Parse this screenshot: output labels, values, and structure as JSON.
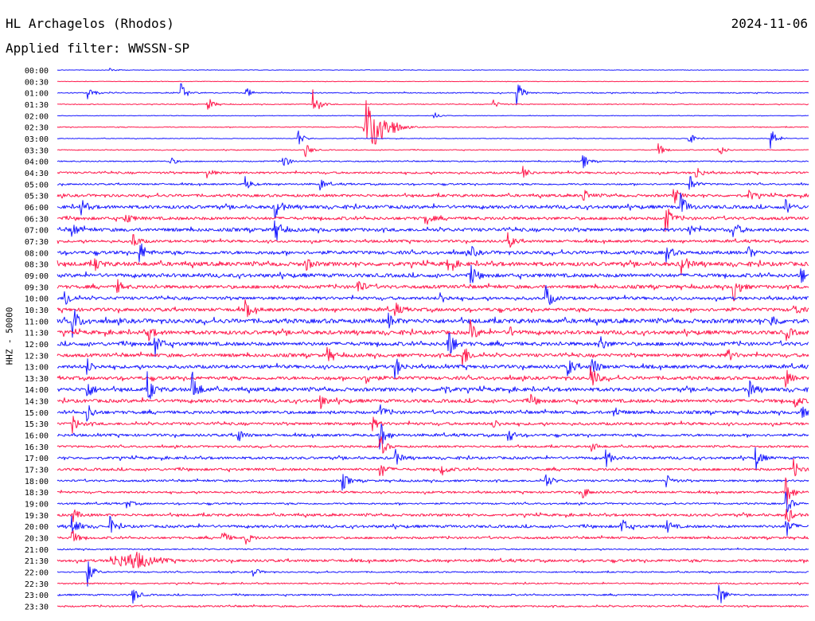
{
  "header": {
    "station": "HL Archagelos (Rhodos)",
    "date": "2024-11-06",
    "filter": "Applied filter: WWSSN-SP"
  },
  "side_label": "HHZ - 50000",
  "colors": {
    "trace_a": "#1a1aff",
    "trace_b": "#ff1a4d",
    "text": "#000000"
  },
  "chart_data": {
    "type": "line",
    "title": "HL Archagelos (Rhodos)",
    "subtitle": "Applied filter: WWSSN-SP",
    "ylabel": "HHZ - 50000",
    "xlabel": "",
    "row_labels": [
      "00:00",
      "00:30",
      "01:00",
      "01:30",
      "02:00",
      "02:30",
      "03:00",
      "03:30",
      "04:00",
      "04:30",
      "05:00",
      "05:30",
      "06:00",
      "06:30",
      "07:00",
      "07:30",
      "08:00",
      "08:30",
      "09:00",
      "09:30",
      "10:00",
      "10:30",
      "11:00",
      "11:30",
      "12:00",
      "12:30",
      "13:00",
      "13:30",
      "14:00",
      "14:30",
      "15:00",
      "15:30",
      "16:00",
      "16:30",
      "17:00",
      "17:30",
      "18:00",
      "18:30",
      "19:00",
      "19:30",
      "20:00",
      "20:30",
      "21:00",
      "21:30",
      "22:00",
      "22:30",
      "23:00",
      "23:30"
    ],
    "row_duration_min": 30,
    "series_colors": [
      "#1a1aff",
      "#ff1a4d"
    ],
    "noise_level": [
      0.3,
      0.3,
      0.6,
      0.5,
      0.3,
      0.5,
      0.4,
      0.5,
      0.7,
      1.2,
      1.0,
      1.6,
      2.0,
      1.8,
      2.0,
      1.5,
      2.0,
      2.4,
      2.2,
      2.0,
      1.8,
      2.0,
      2.6,
      2.3,
      2.2,
      2.0,
      2.0,
      2.0,
      2.2,
      2.0,
      1.8,
      1.6,
      1.5,
      1.2,
      1.5,
      1.5,
      1.2,
      1.2,
      1.0,
      1.5,
      1.6,
      1.3,
      0.8,
      1.5,
      0.8,
      0.8,
      0.9,
      1.0
    ],
    "events": [
      {
        "row": 0,
        "t": 0.07,
        "amp": 3
      },
      {
        "row": 2,
        "t": 0.04,
        "amp": 9
      },
      {
        "row": 2,
        "t": 0.165,
        "amp": 12
      },
      {
        "row": 2,
        "t": 0.25,
        "amp": 9
      },
      {
        "row": 2,
        "t": 0.612,
        "amp": 16
      },
      {
        "row": 3,
        "t": 0.2,
        "amp": 10
      },
      {
        "row": 3,
        "t": 0.34,
        "amp": 22
      },
      {
        "row": 3,
        "t": 0.58,
        "amp": 6
      },
      {
        "row": 4,
        "t": 0.5,
        "amp": 6
      },
      {
        "row": 5,
        "t": 0.41,
        "amp": 28
      },
      {
        "row": 6,
        "t": 0.32,
        "amp": 12
      },
      {
        "row": 6,
        "t": 0.84,
        "amp": 9
      },
      {
        "row": 6,
        "t": 0.95,
        "amp": 14
      },
      {
        "row": 7,
        "t": 0.33,
        "amp": 10
      },
      {
        "row": 7,
        "t": 0.8,
        "amp": 9
      },
      {
        "row": 7,
        "t": 0.88,
        "amp": 9
      },
      {
        "row": 8,
        "t": 0.3,
        "amp": 11
      },
      {
        "row": 8,
        "t": 0.15,
        "amp": 6
      },
      {
        "row": 8,
        "t": 0.7,
        "amp": 9
      },
      {
        "row": 9,
        "t": 0.2,
        "amp": 6
      },
      {
        "row": 9,
        "t": 0.62,
        "amp": 8
      },
      {
        "row": 9,
        "t": 0.85,
        "amp": 9
      },
      {
        "row": 10,
        "t": 0.25,
        "amp": 10
      },
      {
        "row": 10,
        "t": 0.35,
        "amp": 7
      },
      {
        "row": 10,
        "t": 0.84,
        "amp": 15
      },
      {
        "row": 11,
        "t": 0.7,
        "amp": 9
      },
      {
        "row": 11,
        "t": 0.82,
        "amp": 12
      },
      {
        "row": 11,
        "t": 0.92,
        "amp": 8
      },
      {
        "row": 12,
        "t": 0.03,
        "amp": 12
      },
      {
        "row": 12,
        "t": 0.29,
        "amp": 16
      },
      {
        "row": 12,
        "t": 0.83,
        "amp": 18
      },
      {
        "row": 12,
        "t": 0.97,
        "amp": 10
      },
      {
        "row": 13,
        "t": 0.09,
        "amp": 9
      },
      {
        "row": 13,
        "t": 0.49,
        "amp": 9
      },
      {
        "row": 13,
        "t": 0.81,
        "amp": 18
      },
      {
        "row": 14,
        "t": 0.02,
        "amp": 9
      },
      {
        "row": 14,
        "t": 0.29,
        "amp": 17
      },
      {
        "row": 14,
        "t": 0.84,
        "amp": 10
      },
      {
        "row": 14,
        "t": 0.9,
        "amp": 12
      },
      {
        "row": 15,
        "t": 0.1,
        "amp": 12
      },
      {
        "row": 15,
        "t": 0.6,
        "amp": 10
      },
      {
        "row": 16,
        "t": 0.11,
        "amp": 15
      },
      {
        "row": 16,
        "t": 0.55,
        "amp": 8
      },
      {
        "row": 16,
        "t": 0.81,
        "amp": 12
      },
      {
        "row": 16,
        "t": 0.92,
        "amp": 8
      },
      {
        "row": 17,
        "t": 0.05,
        "amp": 8
      },
      {
        "row": 17,
        "t": 0.33,
        "amp": 9
      },
      {
        "row": 17,
        "t": 0.52,
        "amp": 10
      },
      {
        "row": 17,
        "t": 0.83,
        "amp": 17
      },
      {
        "row": 18,
        "t": 0.55,
        "amp": 14
      },
      {
        "row": 18,
        "t": 0.99,
        "amp": 10
      },
      {
        "row": 19,
        "t": 0.08,
        "amp": 8
      },
      {
        "row": 19,
        "t": 0.4,
        "amp": 12
      },
      {
        "row": 19,
        "t": 0.9,
        "amp": 20
      },
      {
        "row": 20,
        "t": 0.01,
        "amp": 14
      },
      {
        "row": 20,
        "t": 0.51,
        "amp": 8
      },
      {
        "row": 20,
        "t": 0.65,
        "amp": 18
      },
      {
        "row": 21,
        "t": 0.25,
        "amp": 12
      },
      {
        "row": 21,
        "t": 0.45,
        "amp": 8
      },
      {
        "row": 21,
        "t": 0.98,
        "amp": 10
      },
      {
        "row": 22,
        "t": 0.02,
        "amp": 22
      },
      {
        "row": 22,
        "t": 0.44,
        "amp": 10
      },
      {
        "row": 22,
        "t": 0.95,
        "amp": 10
      },
      {
        "row": 23,
        "t": 0.12,
        "amp": 11
      },
      {
        "row": 23,
        "t": 0.55,
        "amp": 14
      },
      {
        "row": 23,
        "t": 0.6,
        "amp": 9
      },
      {
        "row": 23,
        "t": 0.97,
        "amp": 9
      },
      {
        "row": 24,
        "t": 0.13,
        "amp": 16
      },
      {
        "row": 24,
        "t": 0.52,
        "amp": 24
      },
      {
        "row": 24,
        "t": 0.72,
        "amp": 14
      },
      {
        "row": 25,
        "t": 0.36,
        "amp": 9
      },
      {
        "row": 25,
        "t": 0.54,
        "amp": 16
      },
      {
        "row": 25,
        "t": 0.89,
        "amp": 12
      },
      {
        "row": 26,
        "t": 0.04,
        "amp": 9
      },
      {
        "row": 26,
        "t": 0.45,
        "amp": 14
      },
      {
        "row": 26,
        "t": 0.68,
        "amp": 12
      },
      {
        "row": 26,
        "t": 0.71,
        "amp": 18
      },
      {
        "row": 27,
        "t": 0.41,
        "amp": 10
      },
      {
        "row": 27,
        "t": 0.71,
        "amp": 19
      },
      {
        "row": 27,
        "t": 0.97,
        "amp": 10
      },
      {
        "row": 28,
        "t": 0.04,
        "amp": 12
      },
      {
        "row": 28,
        "t": 0.12,
        "amp": 20
      },
      {
        "row": 28,
        "t": 0.18,
        "amp": 22
      },
      {
        "row": 28,
        "t": 0.51,
        "amp": 11
      },
      {
        "row": 28,
        "t": 0.92,
        "amp": 12
      },
      {
        "row": 29,
        "t": 0.35,
        "amp": 9
      },
      {
        "row": 29,
        "t": 0.63,
        "amp": 8
      },
      {
        "row": 29,
        "t": 0.98,
        "amp": 10
      },
      {
        "row": 30,
        "t": 0.04,
        "amp": 12
      },
      {
        "row": 30,
        "t": 0.43,
        "amp": 9
      },
      {
        "row": 30,
        "t": 0.74,
        "amp": 9
      },
      {
        "row": 30,
        "t": 0.99,
        "amp": 8
      },
      {
        "row": 31,
        "t": 0.02,
        "amp": 12
      },
      {
        "row": 31,
        "t": 0.42,
        "amp": 8
      },
      {
        "row": 31,
        "t": 0.58,
        "amp": 7
      },
      {
        "row": 32,
        "t": 0.24,
        "amp": 10
      },
      {
        "row": 32,
        "t": 0.43,
        "amp": 18
      },
      {
        "row": 32,
        "t": 0.6,
        "amp": 10
      },
      {
        "row": 33,
        "t": 0.43,
        "amp": 14
      },
      {
        "row": 33,
        "t": 0.71,
        "amp": 8
      },
      {
        "row": 34,
        "t": 0.45,
        "amp": 10
      },
      {
        "row": 34,
        "t": 0.73,
        "amp": 12
      },
      {
        "row": 34,
        "t": 0.93,
        "amp": 14
      },
      {
        "row": 35,
        "t": 0.43,
        "amp": 12
      },
      {
        "row": 35,
        "t": 0.51,
        "amp": 10
      },
      {
        "row": 35,
        "t": 0.98,
        "amp": 12
      },
      {
        "row": 36,
        "t": 0.38,
        "amp": 12
      },
      {
        "row": 36,
        "t": 0.65,
        "amp": 10
      },
      {
        "row": 36,
        "t": 0.81,
        "amp": 9
      },
      {
        "row": 37,
        "t": 0.7,
        "amp": 8
      },
      {
        "row": 37,
        "t": 0.97,
        "amp": 20
      },
      {
        "row": 38,
        "t": 0.09,
        "amp": 8
      },
      {
        "row": 38,
        "t": 0.97,
        "amp": 14
      },
      {
        "row": 39,
        "t": 0.02,
        "amp": 10
      },
      {
        "row": 39,
        "t": 0.97,
        "amp": 14
      },
      {
        "row": 40,
        "t": 0.02,
        "amp": 16
      },
      {
        "row": 40,
        "t": 0.07,
        "amp": 12
      },
      {
        "row": 40,
        "t": 0.75,
        "amp": 14
      },
      {
        "row": 40,
        "t": 0.81,
        "amp": 10
      },
      {
        "row": 40,
        "t": 0.97,
        "amp": 14
      },
      {
        "row": 41,
        "t": 0.02,
        "amp": 10
      },
      {
        "row": 41,
        "t": 0.22,
        "amp": 9
      },
      {
        "row": 41,
        "t": 0.25,
        "amp": 10
      },
      {
        "row": 43,
        "t": 0.07,
        "amp": 9
      },
      {
        "row": 43,
        "t": 0.1,
        "amp": 8
      },
      {
        "row": 44,
        "t": 0.04,
        "amp": 18
      },
      {
        "row": 44,
        "t": 0.26,
        "amp": 7
      },
      {
        "row": 46,
        "t": 0.1,
        "amp": 12
      },
      {
        "row": 46,
        "t": 0.88,
        "amp": 20
      }
    ],
    "bursts": [
      {
        "row": 5,
        "t0": 0.405,
        "t1": 0.445,
        "amp": 22
      },
      {
        "row": 43,
        "t0": 0.07,
        "t1": 0.135,
        "amp": 7
      }
    ],
    "xlim": [
      0,
      30
    ],
    "grid": false,
    "legend": "none"
  }
}
